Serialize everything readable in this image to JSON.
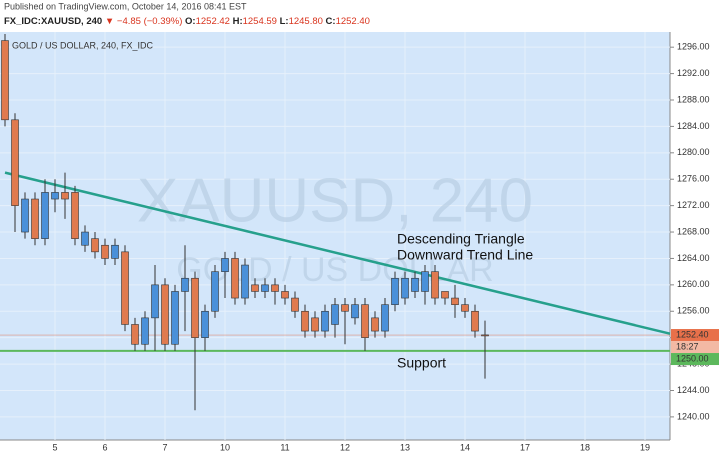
{
  "header": {
    "published": "Published on TradingView.com, October 14, 2016 08:41 EST",
    "symbol": "FX_IDC:XAUUSD, 240",
    "arrow": "▼",
    "change": "−4.85 (−0.39%)",
    "ohlc": [
      {
        "label": "O:",
        "value": "1252.42"
      },
      {
        "label": "H:",
        "value": "1254.59"
      },
      {
        "label": "L:",
        "value": "1245.80"
      },
      {
        "label": "C:",
        "value": "1252.40"
      }
    ]
  },
  "chart_data": {
    "type": "candlestick",
    "title": "GOLD / US DOLLAR, 240, FX_IDC",
    "watermark": "XAUUSD, 240",
    "watermark_subtitle": "GOLD / US DOLLAR",
    "categories": [
      null,
      null,
      null,
      null,
      null,
      "5",
      null,
      null,
      null,
      null,
      "6",
      null,
      null,
      null,
      null,
      null,
      "7",
      null,
      null,
      null,
      null,
      null,
      "10",
      null,
      null,
      null,
      null,
      null,
      "11",
      null,
      null,
      null,
      null,
      null,
      "12",
      null,
      null,
      null,
      null,
      null,
      "13",
      null,
      null,
      null,
      null,
      null,
      "14",
      null,
      null,
      null,
      null,
      null,
      "17",
      null,
      null,
      null,
      null,
      null,
      "18",
      null,
      null,
      null,
      null,
      null,
      "19",
      null,
      null
    ],
    "open": [
      1297,
      1285,
      1268,
      1273,
      1267,
      1273,
      1274,
      1274,
      1266,
      1267,
      1266,
      1264,
      1265,
      1254,
      1251,
      1255,
      1260,
      1251,
      1259,
      1261,
      1252,
      1256,
      1262,
      1264,
      1258,
      1260,
      1259,
      1260,
      1259,
      1258,
      1256,
      1255,
      1253,
      1254,
      1257,
      1255,
      1257,
      1255,
      1253,
      1257,
      1258,
      1259,
      1259,
      1262,
      1259,
      1258,
      1257,
      1256,
      1252.42,
      null,
      null,
      null,
      null,
      null,
      null,
      null,
      null,
      null,
      null,
      null,
      null,
      null,
      null,
      null,
      null,
      null,
      null
    ],
    "high": [
      1298,
      1286,
      1274,
      1274,
      1276,
      1276,
      1277,
      1275,
      1269,
      1268,
      1267,
      1267,
      1266,
      1255,
      1256,
      1263,
      1261,
      1260,
      1266,
      1262,
      1257,
      1263,
      1265,
      1265,
      1264,
      1261,
      1261,
      1261,
      1260,
      1259,
      1257,
      1256,
      1257,
      1258,
      1258,
      1258,
      1258,
      1256,
      1258,
      1262,
      1262,
      1262,
      1263,
      1263,
      1259,
      1260,
      1258,
      1257,
      1254.59,
      null,
      null,
      null,
      null,
      null,
      null,
      null,
      null,
      null,
      null,
      null,
      null,
      null,
      null,
      null,
      null,
      null,
      null
    ],
    "low": [
      1284,
      1268,
      1267,
      1266,
      1266,
      1271,
      1270,
      1266,
      1265,
      1264,
      1263,
      1263,
      1253,
      1250,
      1250,
      1250,
      1250,
      1250,
      1253,
      1241,
      1250,
      1255,
      1258,
      1257,
      1257,
      1258,
      1258,
      1257,
      1257,
      1255,
      1252,
      1252,
      1252,
      1252,
      1251,
      1254,
      1250,
      1252,
      1252,
      1256,
      1257,
      1258,
      1257,
      1257,
      1257,
      1255,
      1255,
      1252,
      1245.8,
      null,
      null,
      null,
      null,
      null,
      null,
      null,
      null,
      null,
      null,
      null,
      null,
      null,
      null,
      null,
      null,
      null,
      null
    ],
    "close": [
      1285,
      1272,
      1273,
      1267,
      1274,
      1274,
      1273,
      1267,
      1268,
      1265,
      1264,
      1266,
      1254,
      1251,
      1255,
      1260,
      1251,
      1259,
      1261,
      1252,
      1256,
      1262,
      1264,
      1258,
      1263,
      1259,
      1260,
      1259,
      1258,
      1256,
      1253,
      1253,
      1256,
      1257,
      1256,
      1257,
      1252,
      1253,
      1257,
      1261,
      1261,
      1261,
      1262,
      1258,
      1258,
      1257,
      1256,
      1253,
      1252.4,
      null,
      null,
      null,
      null,
      null,
      null,
      null,
      null,
      null,
      null,
      null,
      null,
      null,
      null,
      null,
      null,
      null,
      null
    ],
    "up_color": "#4a90d9",
    "down_color": "#e07a4f",
    "ylim": [
      1236.5,
      1298.3
    ],
    "yticks": [
      {
        "value": 1240,
        "label": "1240.00"
      },
      {
        "value": 1244,
        "label": "1244.00"
      },
      {
        "value": 1248,
        "label": "1248.00"
      },
      {
        "value": 1252,
        "label": "1252.00"
      },
      {
        "value": 1256,
        "label": "1256.00"
      },
      {
        "value": 1260,
        "label": "1260.00"
      },
      {
        "value": 1264,
        "label": "1264.00"
      },
      {
        "value": 1268,
        "label": "1268.00"
      },
      {
        "value": 1272,
        "label": "1272.00"
      },
      {
        "value": 1276,
        "label": "1276.00"
      },
      {
        "value": 1280,
        "label": "1280.00"
      },
      {
        "value": 1284,
        "label": "1284.00"
      },
      {
        "value": 1288,
        "label": "1288.00"
      },
      {
        "value": 1292,
        "label": "1292.00"
      },
      {
        "value": 1296,
        "label": "1296.00"
      }
    ],
    "grid": true,
    "trend_line": {
      "label": [
        "Descending Triangle",
        "Downward Trend Line"
      ],
      "start": 1277,
      "end": 1252.6,
      "color": "#26a08c"
    },
    "support": {
      "label": "Support",
      "value": 1250,
      "value_label": "1250.00",
      "color": "#5cb85c"
    },
    "last_price": {
      "value": 1252.4,
      "value_label": "1252.40",
      "countdown": "18:27",
      "color": "#e8704a"
    }
  }
}
